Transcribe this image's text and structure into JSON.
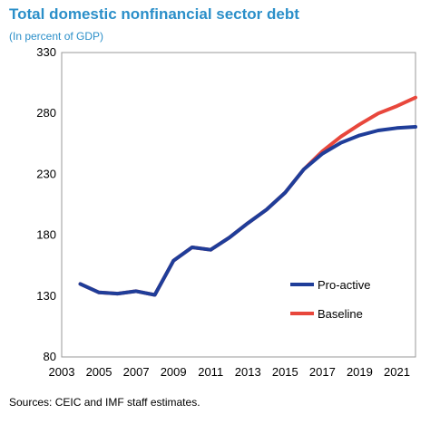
{
  "chart_data": {
    "type": "line",
    "title": "Total domestic nonfinancial sector debt",
    "subtitle": "(In percent of GDP)",
    "source": "Sources: CEIC and IMF staff estimates.",
    "xlabel": "",
    "ylabel": "",
    "xlim": [
      2003,
      2022
    ],
    "ylim": [
      80,
      330
    ],
    "yticks": [
      80,
      130,
      180,
      230,
      280,
      330
    ],
    "xticks": [
      2003,
      2005,
      2007,
      2009,
      2011,
      2013,
      2015,
      2017,
      2019,
      2021
    ],
    "grid": false,
    "legend_position": "lower-right",
    "series": [
      {
        "name": "Pro-active",
        "color": "#1f3d99",
        "x": [
          2004,
          2005,
          2006,
          2007,
          2008,
          2009,
          2010,
          2011,
          2012,
          2013,
          2014,
          2015,
          2016,
          2017,
          2018,
          2019,
          2020,
          2021,
          2022
        ],
        "values": [
          140,
          133,
          132,
          134,
          131,
          159,
          170,
          168,
          178,
          190,
          201,
          215,
          234,
          247,
          256,
          262,
          266,
          268,
          269
        ]
      },
      {
        "name": "Baseline",
        "color": "#e8473c",
        "x": [
          2004,
          2005,
          2006,
          2007,
          2008,
          2009,
          2010,
          2011,
          2012,
          2013,
          2014,
          2015,
          2016,
          2017,
          2018,
          2019,
          2020,
          2021,
          2022
        ],
        "values": [
          140,
          133,
          132,
          134,
          131,
          159,
          170,
          168,
          178,
          190,
          201,
          215,
          234,
          249,
          261,
          271,
          280,
          286,
          293
        ]
      }
    ]
  }
}
